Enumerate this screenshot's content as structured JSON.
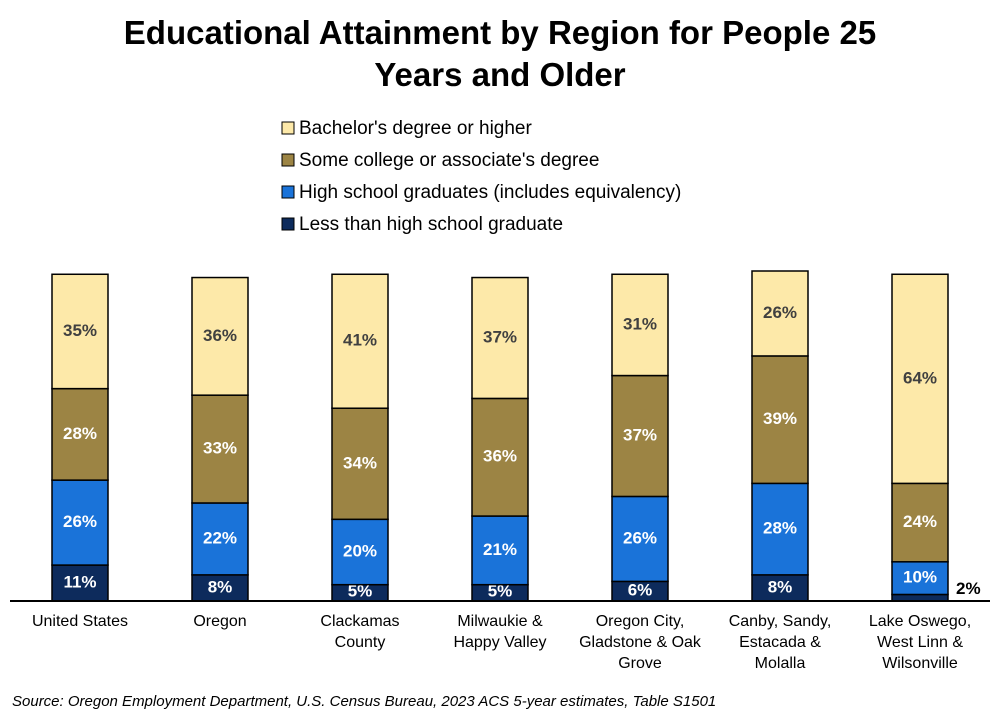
{
  "chart_data": {
    "type": "stacked-bar",
    "title": "Educational Attainment by Region for People 25 Years and Older",
    "categories": [
      "United States",
      "Oregon",
      "Clackamas County",
      "Milwaukie & Happy Valley",
      "Oregon City, Gladstone & Oak Grove",
      "Canby, Sandy, Estacada & Molalla",
      "Lake Oswego, West Linn & Wilsonville"
    ],
    "series": [
      {
        "name": "Less than high school graduate",
        "color": "#0d2b5c",
        "label_color": "#ffffff",
        "values": [
          11,
          8,
          5,
          5,
          6,
          8,
          2
        ],
        "value_labels": [
          "11%",
          "8%",
          "5%",
          "5%",
          "6%",
          "8%",
          "2%"
        ]
      },
      {
        "name": "High school graduates (includes equivalency)",
        "color": "#1a73d9",
        "label_color": "#ffffff",
        "values": [
          26,
          22,
          20,
          21,
          26,
          28,
          10
        ],
        "value_labels": [
          "26%",
          "22%",
          "20%",
          "21%",
          "26%",
          "28%",
          "10%"
        ]
      },
      {
        "name": "Some college or associate's degree",
        "color": "#9c8444",
        "label_color": "#ffffff",
        "values": [
          28,
          33,
          34,
          36,
          37,
          39,
          24
        ],
        "value_labels": [
          "28%",
          "33%",
          "34%",
          "36%",
          "37%",
          "39%",
          "24%"
        ]
      },
      {
        "name": "Bachelor's degree or higher",
        "color": "#fde9a9",
        "label_color": "#404040",
        "values": [
          35,
          36,
          41,
          37,
          31,
          26,
          64
        ],
        "value_labels": [
          "35%",
          "36%",
          "41%",
          "37%",
          "31%",
          "26%",
          "64%"
        ]
      }
    ],
    "source": "Source: Oregon Employment Department, U.S. Census Bureau, 2023 ACS 5-year estimates, Table S1501"
  }
}
